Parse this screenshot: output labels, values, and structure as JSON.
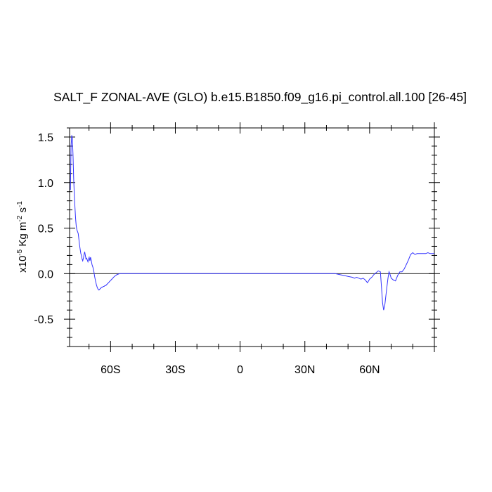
{
  "chart_data": {
    "type": "line",
    "title": "SALT_F ZONAL-AVE (GLO) b.e15.B1850.f09_g16.pi_control.all.100 [26-45]",
    "ylabel": {
      "prefix": "x10",
      "exp1": "-5",
      "mid": " Kg m",
      "exp2": "-2",
      "mid2": " s",
      "exp3": "-1"
    },
    "xlim": [
      -79,
      90
    ],
    "ylim": [
      -0.8,
      1.6
    ],
    "xticks": [
      {
        "value": -60,
        "label": "60S"
      },
      {
        "value": -30,
        "label": "30S"
      },
      {
        "value": 0,
        "label": "0"
      },
      {
        "value": 30,
        "label": "30N"
      },
      {
        "value": 60,
        "label": "60N"
      }
    ],
    "yticks": [
      {
        "value": 1.5,
        "label": "1.5"
      },
      {
        "value": 1.0,
        "label": "1.0"
      },
      {
        "value": 0.5,
        "label": "0.5"
      },
      {
        "value": 0.0,
        "label": "0.0"
      },
      {
        "value": -0.5,
        "label": "-0.5"
      }
    ],
    "reference_line": 0,
    "line_color": "#3333ff",
    "series": [
      {
        "x": [
          -78.6,
          -78.3,
          -78.0,
          -77.7,
          -77.4,
          -77.1,
          -76.8,
          -76.5,
          -76.2,
          -75.9,
          -75.6,
          -75.3,
          -75.0,
          -74.7,
          -74.4,
          -74.1,
          -73.8,
          -73.5,
          -73.2,
          -72.9,
          -72.6,
          -72.3,
          -72.0,
          -71.7,
          -71.4,
          -71.1,
          -70.8,
          -70.5,
          -70.2,
          -69.9,
          -69.6,
          -69.3,
          -69.0,
          -68.6,
          -68.2,
          -67.8,
          -67.4,
          -67.0,
          -66.6,
          -66.2,
          -65.8,
          -65.4,
          -65.0,
          -64.6,
          -64.2,
          -63.8,
          -63.4,
          -63.0,
          -62.6,
          -62.2,
          -61.8,
          -61.4,
          -61.0,
          -60.6,
          -60.2,
          -59.8,
          -59.4,
          -59.0,
          -58.6,
          -58.2,
          -57.6,
          -57.0,
          -56.4,
          -55.8,
          -55.2,
          -54.6,
          -54.0,
          -53.4,
          -52.8,
          -52.2,
          -51.6,
          -51.0,
          -50.0,
          -49.0,
          -47.0,
          -40.0,
          -30.0,
          -20.0,
          -10.0,
          0.0,
          10.0,
          20.0,
          30.0,
          40.0,
          44.0,
          46.0,
          48.0,
          50.0,
          52.0,
          53.0,
          54.0,
          55.0,
          56.0,
          57.0,
          58.0,
          59.0,
          60.0,
          61.0,
          62.0,
          63.0,
          64.0,
          65.0,
          65.5,
          66.0,
          66.5,
          67.0,
          67.5,
          68.0,
          68.5,
          69.0,
          69.5,
          70.0,
          71.0,
          72.0,
          73.0,
          74.0,
          75.0,
          76.0,
          77.0,
          78.0,
          79.0,
          80.0,
          81.0,
          82.0,
          83.0,
          84.0,
          85.0,
          86.0,
          87.0,
          88.0,
          89.0,
          90.0
        ],
        "y": [
          0.92,
          1.4,
          1.52,
          1.48,
          1.3,
          1.05,
          0.85,
          0.72,
          0.6,
          0.52,
          0.48,
          0.46,
          0.44,
          0.38,
          0.32,
          0.27,
          0.22,
          0.2,
          0.16,
          0.14,
          0.17,
          0.21,
          0.24,
          0.2,
          0.16,
          0.17,
          0.15,
          0.13,
          0.16,
          0.18,
          0.14,
          0.18,
          0.15,
          0.1,
          0.07,
          0.03,
          -0.03,
          -0.08,
          -0.12,
          -0.15,
          -0.17,
          -0.18,
          -0.17,
          -0.16,
          -0.15,
          -0.15,
          -0.14,
          -0.14,
          -0.13,
          -0.13,
          -0.12,
          -0.11,
          -0.1,
          -0.09,
          -0.08,
          -0.07,
          -0.06,
          -0.05,
          -0.04,
          -0.03,
          -0.02,
          -0.01,
          -0.005,
          0.0,
          0.0,
          0.0,
          0.0,
          0.0,
          0.0,
          0.0,
          0.0,
          0.0,
          0.0,
          0.0,
          0.0,
          0.0,
          0.0,
          0.0,
          0.0,
          0.0,
          0.0,
          0.0,
          0.0,
          0.0,
          0.0,
          -0.01,
          -0.02,
          -0.03,
          -0.04,
          -0.05,
          -0.04,
          -0.05,
          -0.06,
          -0.05,
          -0.07,
          -0.1,
          -0.06,
          -0.04,
          -0.01,
          0.01,
          0.03,
          0.02,
          -0.15,
          -0.32,
          -0.4,
          -0.35,
          -0.25,
          -0.15,
          -0.05,
          0.02,
          -0.01,
          -0.05,
          -0.07,
          -0.08,
          -0.02,
          0.02,
          0.02,
          0.05,
          0.1,
          0.15,
          0.21,
          0.23,
          0.21,
          0.22,
          0.22,
          0.22,
          0.22,
          0.22,
          0.23,
          0.22,
          0.22,
          0.22
        ]
      }
    ]
  }
}
